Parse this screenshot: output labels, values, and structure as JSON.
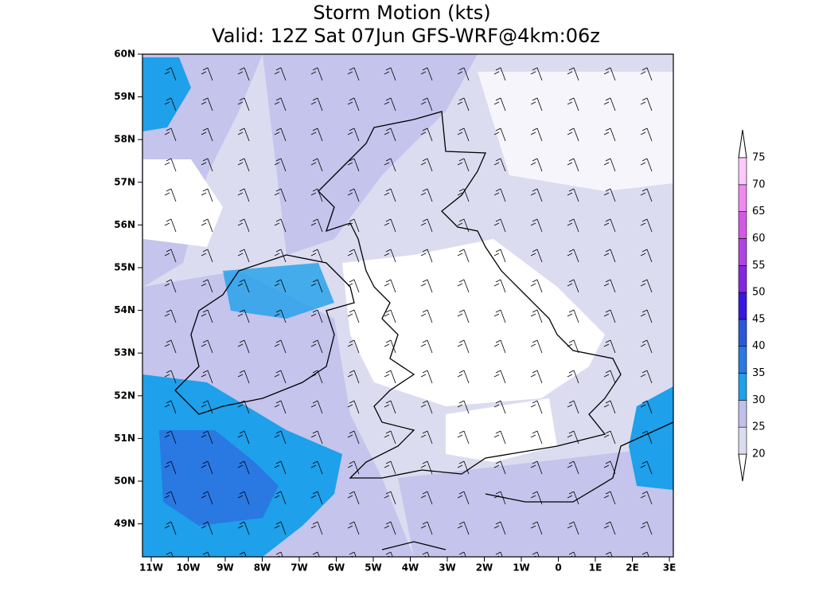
{
  "header": {
    "title": "Storm Motion (kts)",
    "subtitle": "Valid: 12Z Sat 07Jun GFS-WRF@4km:06z"
  },
  "map": {
    "lat_labels": [
      "60N",
      "59N",
      "58N",
      "57N",
      "56N",
      "55N",
      "54N",
      "53N",
      "52N",
      "51N",
      "50N",
      "49N"
    ],
    "lon_labels": [
      "11W",
      "10W",
      "9W",
      "8W",
      "7W",
      "6W",
      "5W",
      "4W",
      "3W",
      "2W",
      "1W",
      "0",
      "1E",
      "2E",
      "3E"
    ]
  },
  "colorbar": {
    "levels": [
      20,
      25,
      30,
      35,
      40,
      45,
      50,
      55,
      60,
      65,
      70,
      75
    ],
    "colors": [
      "#dcdcf0",
      "#c0c0ec",
      "#1ea0ea",
      "#2a78e2",
      "#2a58d8",
      "#3818e0",
      "#8428e0",
      "#b044e2",
      "#d458e6",
      "#f088f0",
      "#ffc8ff"
    ]
  }
}
